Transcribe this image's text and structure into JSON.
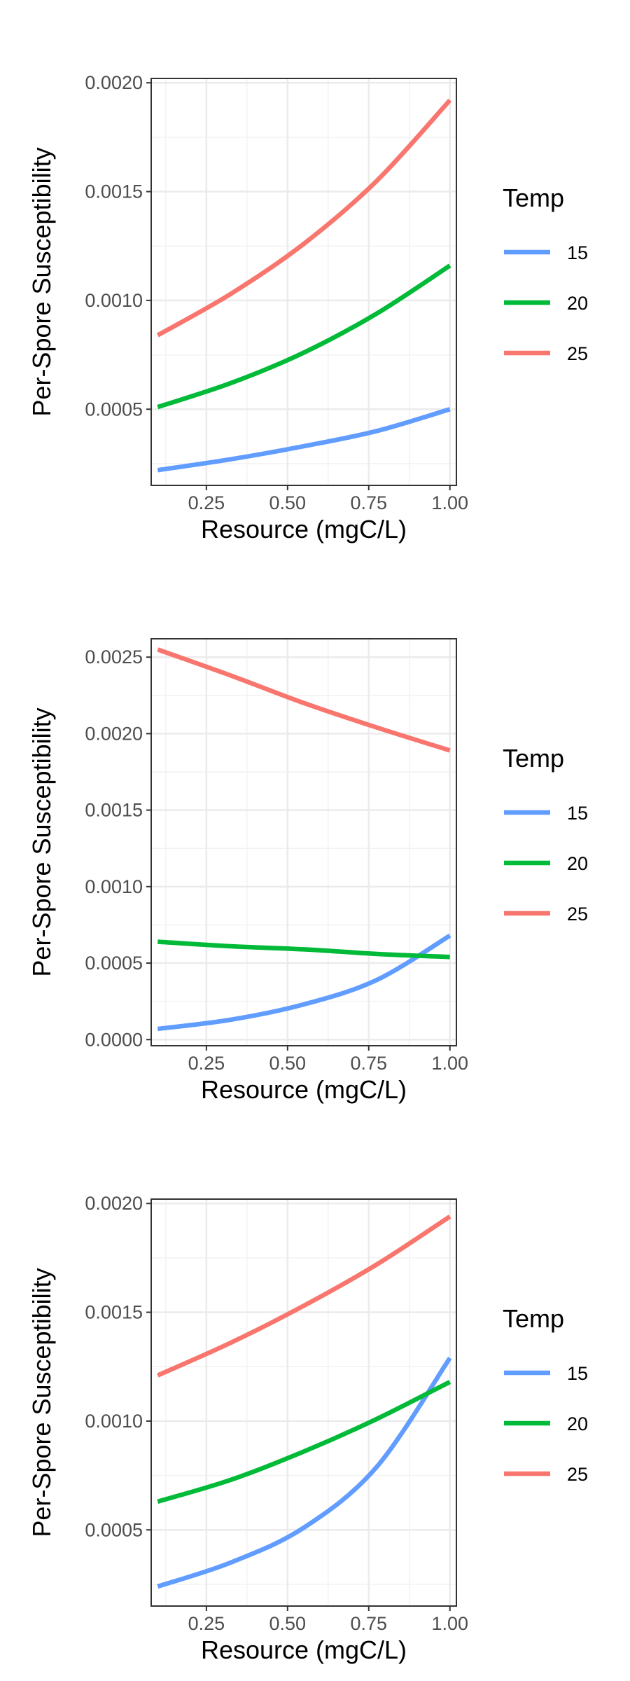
{
  "chart_data": [
    {
      "type": "line",
      "xlabel": "Resource (mgC/L)",
      "ylabel": "Per-Spore Susceptibility",
      "xlim": [
        0.08,
        1.02
      ],
      "ylim": [
        0.00015,
        0.00202
      ],
      "xticks": [
        0.25,
        0.5,
        0.75,
        1.0
      ],
      "xtick_labels": [
        "0.25",
        "0.50",
        "0.75",
        "1.00"
      ],
      "yticks": [
        0.0005,
        0.001,
        0.0015,
        0.002
      ],
      "ytick_labels": [
        "0.0005",
        "0.0010",
        "0.0015",
        "0.0020"
      ],
      "grid": true,
      "legend": {
        "title": "Temp",
        "position": "right"
      },
      "series": [
        {
          "name": "15",
          "color": "#619CFF",
          "x": [
            0.1,
            0.325,
            0.55,
            0.775,
            1.0
          ],
          "values": [
            0.00022,
            0.00027,
            0.00033,
            0.0004,
            0.0005
          ]
        },
        {
          "name": "20",
          "color": "#00BA38",
          "x": [
            0.1,
            0.325,
            0.55,
            0.775,
            1.0
          ],
          "values": [
            0.00051,
            0.00062,
            0.00076,
            0.00094,
            0.00116
          ]
        },
        {
          "name": "25",
          "color": "#F8766D",
          "x": [
            0.1,
            0.325,
            0.55,
            0.775,
            1.0
          ],
          "values": [
            0.00084,
            0.00103,
            0.00126,
            0.00155,
            0.00192
          ]
        }
      ]
    },
    {
      "type": "line",
      "xlabel": "Resource (mgC/L)",
      "ylabel": "Per-Spore Susceptibility",
      "xlim": [
        0.08,
        1.02
      ],
      "ylim": [
        -4e-05,
        0.00262
      ],
      "xticks": [
        0.25,
        0.5,
        0.75,
        1.0
      ],
      "xtick_labels": [
        "0.25",
        "0.50",
        "0.75",
        "1.00"
      ],
      "yticks": [
        0.0,
        0.0005,
        0.001,
        0.0015,
        0.002,
        0.0025
      ],
      "ytick_labels": [
        "0.0000",
        "0.0005",
        "0.0010",
        "0.0015",
        "0.0020",
        "0.0025"
      ],
      "grid": true,
      "legend": {
        "title": "Temp",
        "position": "right"
      },
      "series": [
        {
          "name": "15",
          "color": "#619CFF",
          "x": [
            0.1,
            0.325,
            0.55,
            0.775,
            1.0
          ],
          "values": [
            7e-05,
            0.00013,
            0.00023,
            0.00039,
            0.00068
          ]
        },
        {
          "name": "20",
          "color": "#00BA38",
          "x": [
            0.1,
            0.325,
            0.55,
            0.775,
            1.0
          ],
          "values": [
            0.00064,
            0.00061,
            0.00059,
            0.00056,
            0.00054
          ]
        },
        {
          "name": "25",
          "color": "#F8766D",
          "x": [
            0.1,
            0.325,
            0.55,
            0.775,
            1.0
          ],
          "values": [
            0.00255,
            0.00238,
            0.0022,
            0.00204,
            0.00189
          ]
        }
      ]
    },
    {
      "type": "line",
      "xlabel": "Resource (mgC/L)",
      "ylabel": "Per-Spore Susceptibility",
      "xlim": [
        0.08,
        1.02
      ],
      "ylim": [
        0.00015,
        0.00202
      ],
      "xticks": [
        0.25,
        0.5,
        0.75,
        1.0
      ],
      "xtick_labels": [
        "0.25",
        "0.50",
        "0.75",
        "1.00"
      ],
      "yticks": [
        0.0005,
        0.001,
        0.0015,
        0.002
      ],
      "ytick_labels": [
        "0.0005",
        "0.0010",
        "0.0015",
        "0.0020"
      ],
      "grid": true,
      "legend": {
        "title": "Temp",
        "position": "right"
      },
      "series": [
        {
          "name": "15",
          "color": "#619CFF",
          "x": [
            0.1,
            0.325,
            0.55,
            0.775,
            1.0
          ],
          "values": [
            0.00024,
            0.00035,
            0.00051,
            0.00079,
            0.00129
          ]
        },
        {
          "name": "20",
          "color": "#00BA38",
          "x": [
            0.1,
            0.325,
            0.55,
            0.775,
            1.0
          ],
          "values": [
            0.00063,
            0.00073,
            0.00086,
            0.00101,
            0.00118
          ]
        },
        {
          "name": "25",
          "color": "#F8766D",
          "x": [
            0.1,
            0.325,
            0.55,
            0.775,
            1.0
          ],
          "values": [
            0.00121,
            0.00136,
            0.00153,
            0.00172,
            0.00194
          ]
        }
      ]
    }
  ]
}
